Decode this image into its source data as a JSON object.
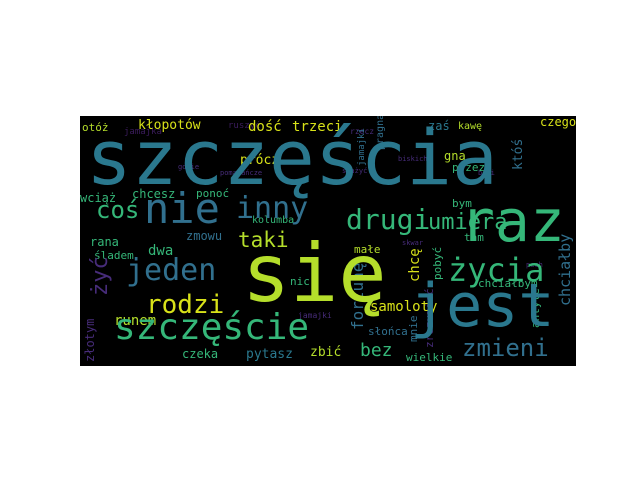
{
  "colors": {
    "background": "#000000",
    "page": "#ffffff",
    "teal": "#31708e",
    "green": "#35b779",
    "lime": "#b5de2b",
    "yellow": "#d8e219",
    "purple": "#472c7a",
    "darkpurple": "#3b1c5c",
    "blue": "#2a788e"
  },
  "words": [
    "szczęścia",
    "się",
    "jest",
    "raz",
    "szczęście",
    "jeden",
    "inny",
    "nie",
    "coś",
    "drugi",
    "umiera",
    "życia",
    "rodzi",
    "taki",
    "zmieni",
    "żyć",
    "bez",
    "chciałby",
    "fortunę",
    "samoloty",
    "kłopotów",
    "dość",
    "trzeci",
    "otóż",
    "zaś",
    "kawę",
    "czego",
    "któś",
    "prócz",
    "gna",
    "przez",
    "wciąż",
    "chcesz",
    "ponoć",
    "bym",
    "kolumba",
    "dwa",
    "zmowu",
    "tam",
    "rana",
    "śladem",
    "nic",
    "małe",
    "chcę",
    "pobyć",
    "chciałbym",
    "złotym",
    "runem",
    "czeka",
    "pytasz",
    "zbić",
    "mnie",
    "wielkie",
    "zrozumieć",
    "antyle",
    "słońca",
    "jamajki",
    "rzecz",
    "pragnął",
    "jamajka",
    "ruszyć",
    "gdzie",
    "pomarańcze",
    "smażyć",
    "biskich",
    "boli",
    "pech",
    "skwar",
    "porze"
  ]
}
